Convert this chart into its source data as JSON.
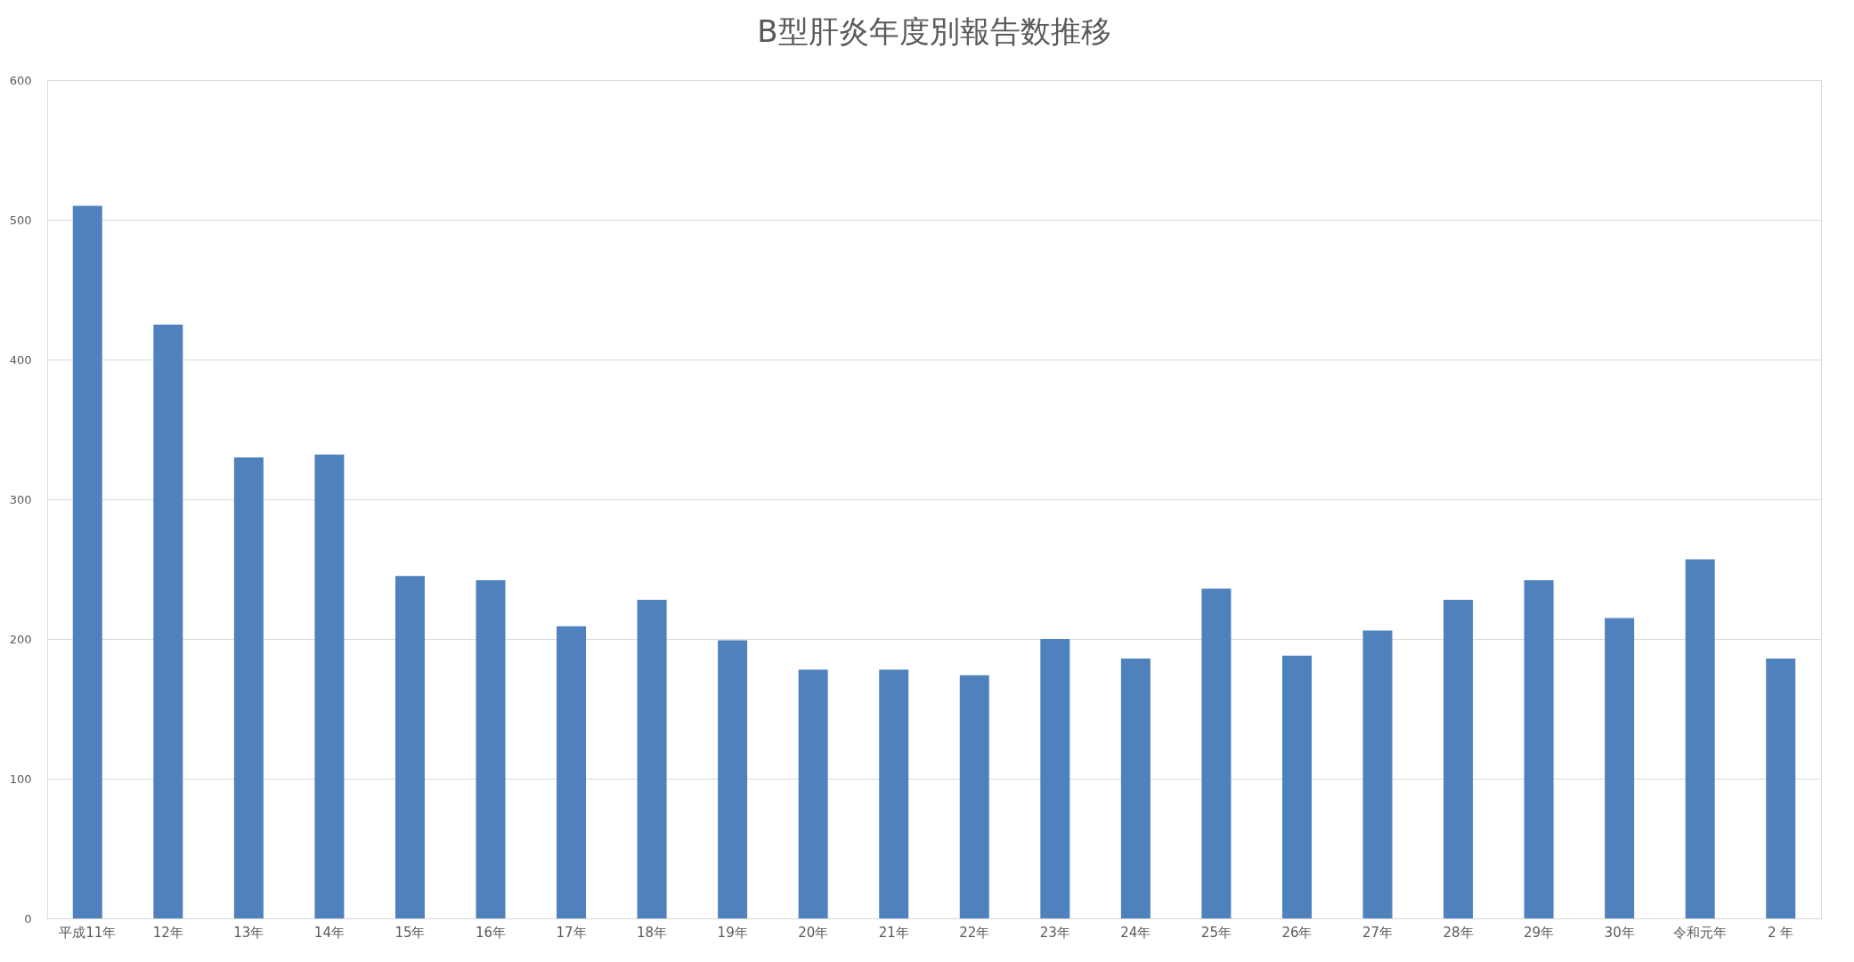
{
  "chart_data": {
    "type": "bar",
    "title": "B型肝炎年度別報告数推移",
    "categories": [
      "平成11年",
      "12年",
      "13年",
      "14年",
      "15年",
      "16年",
      "17年",
      "18年",
      "19年",
      "20年",
      "21年",
      "22年",
      "23年",
      "24年",
      "25年",
      "26年",
      "27年",
      "28年",
      "29年",
      "30年",
      "令和元年",
      "2 年"
    ],
    "values": [
      510,
      425,
      330,
      332,
      245,
      242,
      209,
      228,
      199,
      178,
      178,
      174,
      200,
      186,
      236,
      188,
      206,
      228,
      242,
      215,
      257,
      186
    ],
    "color": "#4f81bd",
    "ylim": [
      0,
      600
    ],
    "yticks": [
      0,
      100,
      200,
      300,
      400,
      500,
      600
    ],
    "grid": "y"
  }
}
